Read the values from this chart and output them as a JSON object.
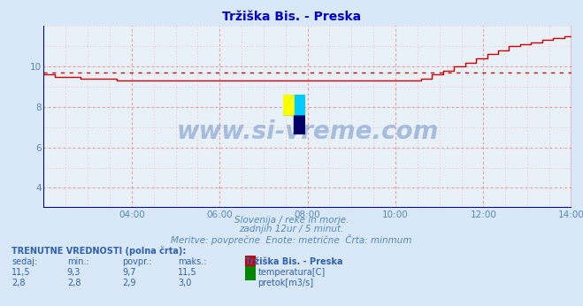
{
  "title": "Tržiška Bis. - Preska",
  "title_color": "#0000cc",
  "bg_color": "#d8e8f8",
  "plot_bg_color": "#e8f0f8",
  "xlabel": "",
  "ylabel": "",
  "xlim": [
    0,
    144
  ],
  "ylim": [
    3.0,
    12.0
  ],
  "yticks": [
    4,
    6,
    8,
    10
  ],
  "xtick_labels": [
    "04:00",
    "06:00",
    "08:00",
    "10:00",
    "12:00",
    "14:00"
  ],
  "xtick_positions": [
    24,
    48,
    72,
    96,
    120,
    144
  ],
  "temp_avg": 9.7,
  "temp_color": "#cc0000",
  "flow_color": "#008800",
  "watermark": "www.si-vreme.com",
  "watermark_color": "#3060b0",
  "sub_text1": "Slovenija / reke in morje.",
  "sub_text2": "zadnjih 12ur / 5 minut.",
  "sub_text3": "Meritve: povprečne  Enote: metrične  Črta: minmum",
  "sub_text_color": "#5588bb",
  "table_header": "TRENUTNE VREDNOSTI (polna črta):",
  "col_headers": [
    "sedaj:",
    "min.:",
    "povpr.:",
    "maks.:",
    "Tržiška Bis. - Preska"
  ],
  "temp_row": [
    "11,5",
    "9,3",
    "9,7",
    "11,5",
    "temperatura[C]"
  ],
  "flow_row": [
    "2,8",
    "2,8",
    "2,9",
    "3,0",
    "pretok[m3/s]"
  ],
  "table_color": "#3060b0",
  "axis_left_color": "#0000aa",
  "axis_bottom_color": "#0000aa",
  "axis_right_color": "#cc0000",
  "grid_minor_color": "#f0c0c0",
  "grid_major_color": "#f09090",
  "logo_yellow": "#ffff00",
  "logo_cyan": "#00ccff",
  "logo_dark": "#000066"
}
